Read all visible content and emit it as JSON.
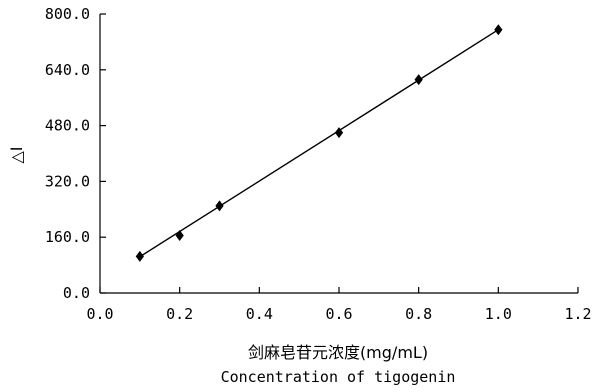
{
  "chart_data": {
    "type": "scatter",
    "title": "",
    "xlabel": "剑麻皂苷元浓度(mg/mL)",
    "xlabel_en": "Concentration of tigogenin",
    "ylabel": "△I",
    "xlim": [
      0.0,
      1.2
    ],
    "ylim": [
      0.0,
      800.0
    ],
    "x_ticks": [
      "0.0",
      "0.2",
      "0.4",
      "0.6",
      "0.8",
      "1.0",
      "1.2"
    ],
    "y_ticks": [
      "0.0",
      "160.0",
      "320.0",
      "480.0",
      "640.0",
      "800.0"
    ],
    "grid": false,
    "legend": "none",
    "marker": "diamond",
    "series": [
      {
        "x": [
          0.1,
          0.2,
          0.3,
          0.6,
          0.8,
          1.0
        ],
        "y": [
          105,
          165,
          250,
          460,
          612,
          755
        ]
      }
    ],
    "fit_line": {
      "x": [
        0.1,
        1.0
      ],
      "y": [
        104,
        755
      ]
    }
  }
}
